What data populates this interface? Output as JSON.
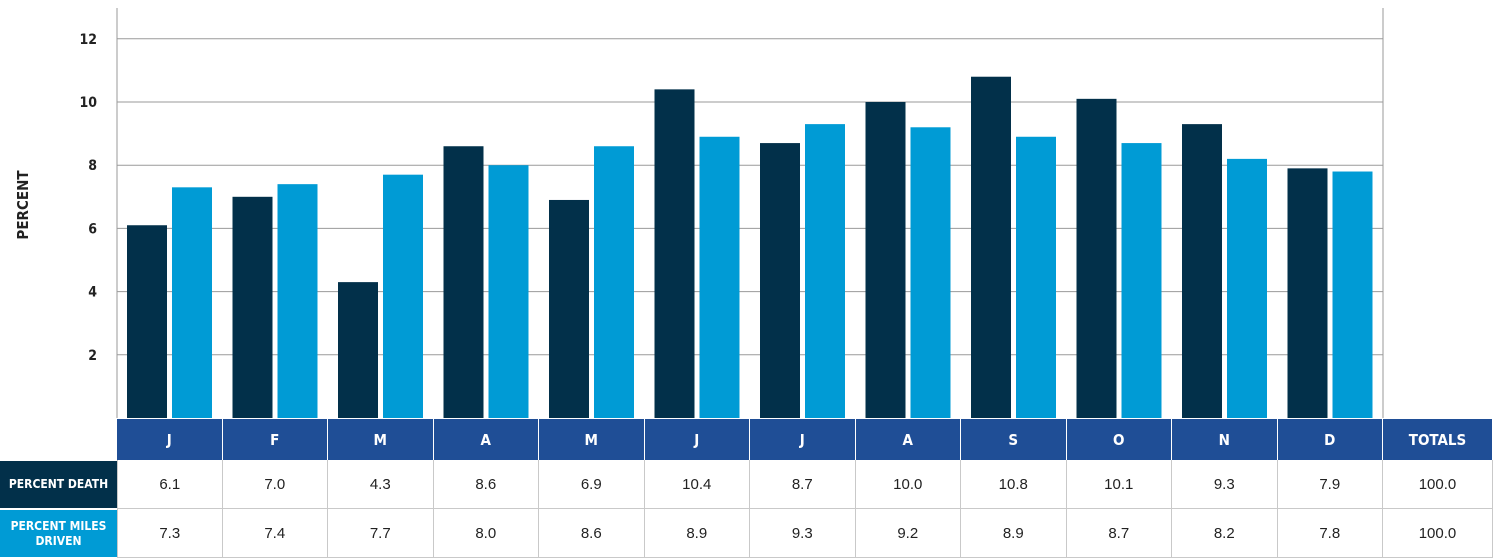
{
  "colors": {
    "death": "#02304a",
    "miles": "#009bd5",
    "header": "#1f4e96"
  },
  "chart_data": {
    "type": "bar",
    "ylabel": "PERCENT",
    "ylim": [
      0,
      12.5
    ],
    "yticks": [
      2,
      4,
      6,
      8,
      10,
      12
    ],
    "grid": true,
    "categories": [
      "J",
      "F",
      "M",
      "A",
      "M",
      "J",
      "J",
      "A",
      "S",
      "O",
      "N",
      "D"
    ],
    "series": [
      {
        "name": "PERCENT DEATH",
        "values": [
          6.1,
          7.0,
          4.3,
          8.6,
          6.9,
          10.4,
          8.7,
          10.0,
          10.8,
          10.1,
          9.3,
          7.9
        ]
      },
      {
        "name": "PERCENT MILES DRIVEN",
        "values": [
          7.3,
          7.4,
          7.7,
          8.0,
          8.6,
          8.9,
          9.3,
          9.2,
          8.9,
          8.7,
          8.2,
          7.8
        ]
      }
    ]
  },
  "table": {
    "headers": [
      "J",
      "F",
      "M",
      "A",
      "M",
      "J",
      "J",
      "A",
      "S",
      "O",
      "N",
      "D",
      "TOTALS"
    ],
    "rows": [
      {
        "label": "PERCENT DEATH",
        "values": [
          "6.1",
          "7.0",
          "4.3",
          "8.6",
          "6.9",
          "10.4",
          "8.7",
          "10.0",
          "10.8",
          "10.1",
          "9.3",
          "7.9",
          "100.0"
        ]
      },
      {
        "label": "PERCENT MILES DRIVEN",
        "values": [
          "7.3",
          "7.4",
          "7.7",
          "8.0",
          "8.6",
          "8.9",
          "9.3",
          "9.2",
          "8.9",
          "8.7",
          "8.2",
          "7.8",
          "100.0"
        ]
      }
    ]
  }
}
